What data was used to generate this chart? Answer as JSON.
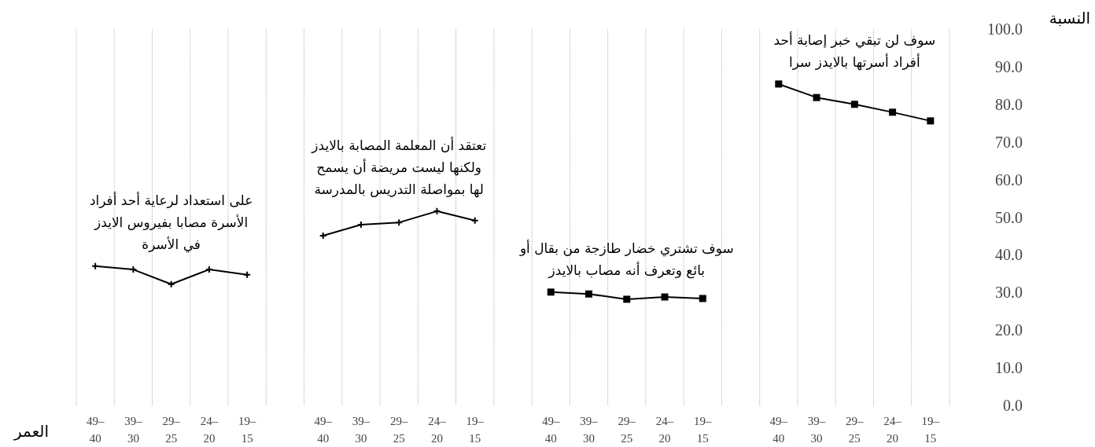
{
  "chart_data": {
    "type": "line",
    "xlabel": "العمر",
    "ylabel": "النسبة",
    "categories": [
      "49–40",
      "39–30",
      "29–25",
      "24–20",
      "19–15",
      null,
      "49–40",
      "39–30",
      "29–25",
      "24–20",
      "19–15",
      null,
      "49–40",
      "39–30",
      "29–25",
      "24–20",
      "19–15",
      null,
      "49–40",
      "39–30",
      "29–25",
      "24–20",
      "19–15"
    ],
    "ylim": [
      0,
      100
    ],
    "yticks": [
      {
        "value": 0,
        "label": "0.0"
      },
      {
        "value": 10,
        "label": "10.0"
      },
      {
        "value": 20,
        "label": "20.0"
      },
      {
        "value": 30,
        "label": "30.0"
      },
      {
        "value": 40,
        "label": "40.0"
      },
      {
        "value": 50,
        "label": "50.0"
      },
      {
        "value": 60,
        "label": "60.0"
      },
      {
        "value": 70,
        "label": "70.0"
      },
      {
        "value": 80,
        "label": "80.0"
      },
      {
        "value": 90,
        "label": "90.0"
      },
      {
        "value": 100,
        "label": "100.0"
      }
    ],
    "grid": "x",
    "line_style": "solid",
    "series": [
      {
        "name": "على استعداد لرعاية أحد أفراد\nالأسرة مصابا بفيروس الايدز\nفي الأسرة",
        "color": "#000000",
        "marker": "cross",
        "values": [
          37.0,
          36.1,
          32.2,
          36.1,
          34.7,
          null,
          null,
          null,
          null,
          null,
          null,
          null,
          null,
          null,
          null,
          null,
          null,
          null,
          null,
          null,
          null,
          null,
          null
        ]
      },
      {
        "name": "تعتقد أن المعلمة المصابة بالايدز\nولكنها ليست مريضة أن يسمح\nلها بمواصلة التدريس بالمدرسة",
        "color": "#000000",
        "marker": "cross",
        "values": [
          null,
          null,
          null,
          null,
          null,
          null,
          45.1,
          48.0,
          48.6,
          51.6,
          49.1,
          null,
          null,
          null,
          null,
          null,
          null,
          null,
          null,
          null,
          null,
          null,
          null
        ]
      },
      {
        "name": "سوف تشتري خضار طازجة من بقال أو\nبائع وتعرف أنه مصاب بالايدز",
        "color": "#000000",
        "marker": "square",
        "values": [
          null,
          null,
          null,
          null,
          null,
          null,
          null,
          null,
          null,
          null,
          null,
          null,
          30.1,
          29.6,
          28.2,
          28.8,
          28.4,
          null,
          null,
          null,
          null,
          null,
          null
        ]
      },
      {
        "name": "سوف لن تبقي خبر إصابة أحد\nأفراد أسرتها بالايدز سرا",
        "color": "#000000",
        "marker": "square",
        "values": [
          null,
          null,
          null,
          null,
          null,
          null,
          null,
          null,
          null,
          null,
          null,
          null,
          null,
          null,
          null,
          null,
          null,
          null,
          85.4,
          81.8,
          80.0,
          77.9,
          75.6
        ]
      }
    ]
  }
}
